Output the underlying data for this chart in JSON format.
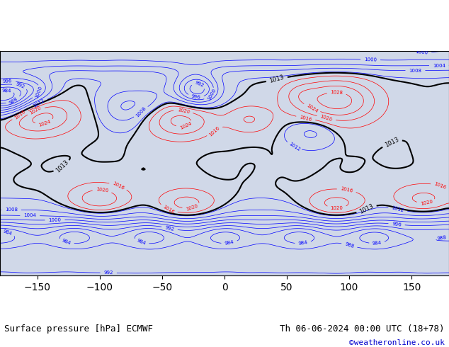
{
  "title_left": "Surface pressure [hPa] ECMWF",
  "title_right": "Th 06-06-2024 00:00 UTC (18+78)",
  "credit": "©weatheronline.co.uk",
  "background_color": "#ffffff",
  "map_background": "#e8e8e8",
  "ocean_color": "#b0c4de",
  "land_color": "#c8e6c0",
  "title_fontsize": 9,
  "credit_color": "#0000cc",
  "label_fontsize_black": 7,
  "label_fontsize_blue": 6,
  "label_fontsize_red": 6,
  "contour_interval": 4,
  "pressure_min": 948,
  "pressure_max": 1048,
  "black_contour_levels": [
    1013
  ],
  "red_contour_above": 1013,
  "blue_contour_below": 1013,
  "contour_linewidth_main": 1.0,
  "contour_linewidth_bold": 1.8,
  "fig_width": 6.34,
  "fig_height": 4.9
}
